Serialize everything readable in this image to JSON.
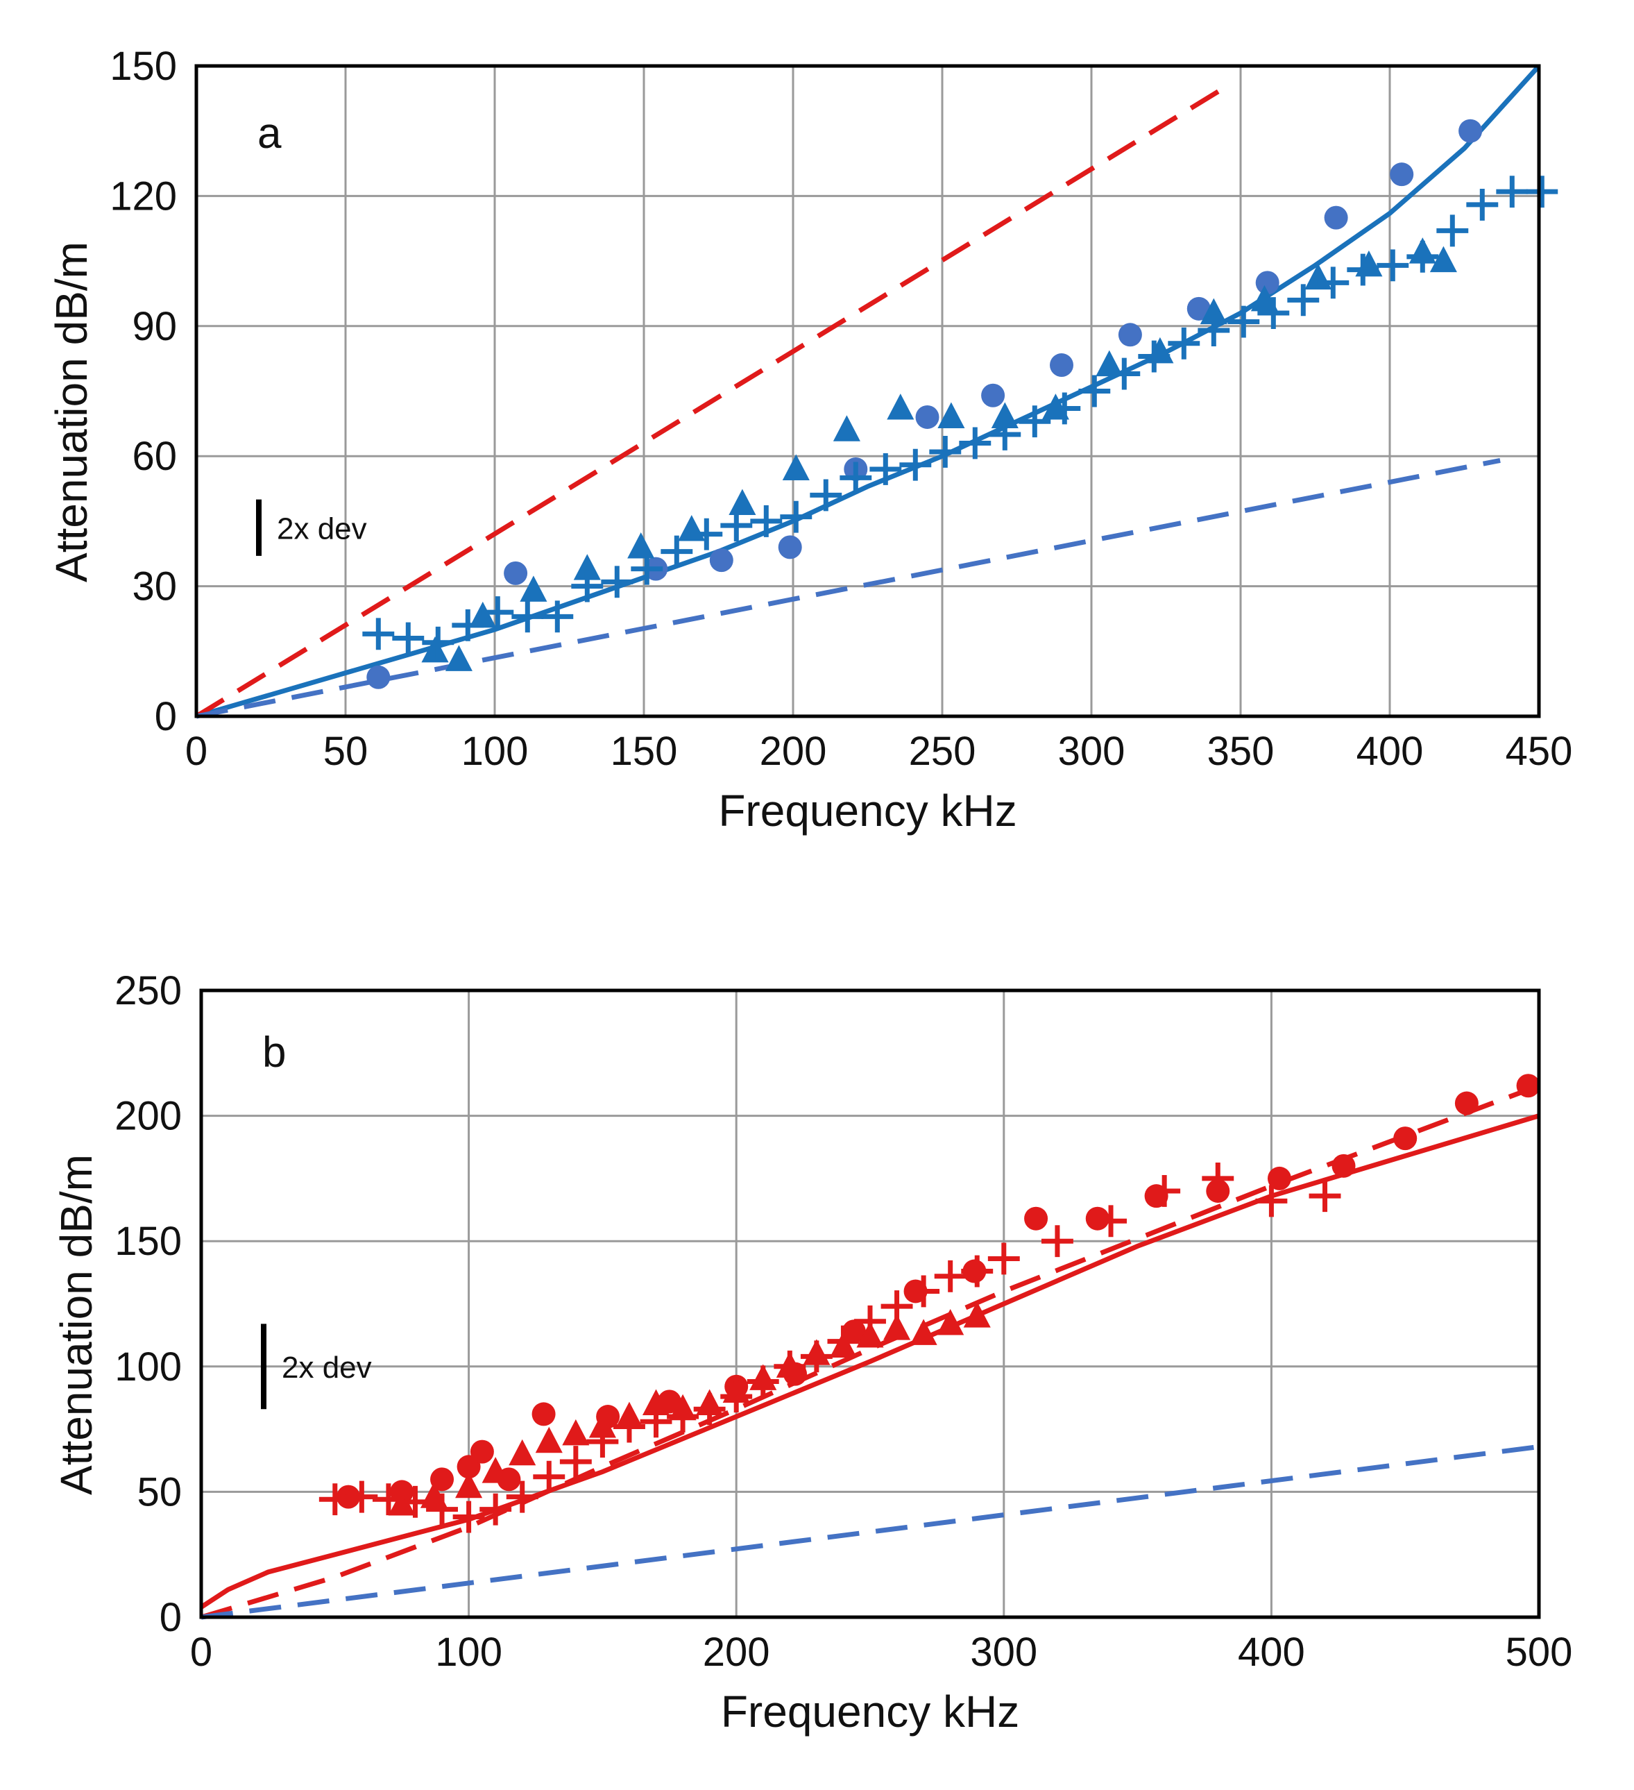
{
  "chart_data": [
    {
      "type": "scatter",
      "panel_label": "a",
      "xlabel": "Frequency  kHz",
      "ylabel": "Attenuation  dB/m",
      "xlim": [
        0,
        450
      ],
      "ylim": [
        0,
        150
      ],
      "xticks": [
        0,
        50,
        100,
        150,
        200,
        250,
        300,
        350,
        400,
        450
      ],
      "yticks": [
        0,
        30,
        60,
        90,
        120,
        150
      ],
      "grid": true,
      "scale_bar": {
        "label": "2x dev",
        "y_from": 37,
        "y_to": 50
      },
      "series": [
        {
          "marker": "circle",
          "color": "#4472c4",
          "x": [
            61,
            107,
            154,
            176,
            199,
            221,
            245,
            267,
            290,
            313,
            336,
            359,
            382,
            404,
            427
          ],
          "y": [
            9,
            33,
            34,
            36,
            39,
            57,
            69,
            74,
            81,
            88,
            94,
            100,
            115,
            125,
            135
          ]
        },
        {
          "marker": "triangle",
          "color": "#1a72bb",
          "x": [
            80,
            88,
            96,
            113,
            131,
            149,
            166,
            183,
            201,
            218,
            236,
            253,
            271,
            288,
            306,
            323,
            341,
            358,
            376,
            393,
            411,
            418
          ],
          "y": [
            15,
            13,
            23,
            29,
            34,
            39,
            43,
            49,
            57,
            66,
            71,
            69,
            69,
            71,
            81,
            84,
            93,
            96,
            101,
            104,
            107,
            105
          ]
        },
        {
          "marker": "plus",
          "color": "#1a72bb",
          "x": [
            61,
            71,
            81,
            91,
            101,
            111,
            121,
            131,
            141,
            151,
            161,
            171,
            181,
            191,
            201,
            211,
            221,
            231,
            241,
            251,
            261,
            271,
            281,
            291,
            301,
            311,
            321,
            331,
            341,
            351,
            361,
            371,
            381,
            391,
            401,
            411,
            421,
            431,
            441,
            451
          ],
          "y": [
            19,
            18,
            17,
            21,
            24,
            23,
            23,
            30,
            31,
            34,
            38,
            42,
            44,
            45,
            46,
            51,
            55,
            57,
            58,
            61,
            63,
            65,
            68,
            71,
            75,
            79,
            83,
            86,
            89,
            91,
            93,
            96,
            100,
            103,
            104,
            106,
            112,
            118,
            121,
            121
          ]
        },
        {
          "style": "solid",
          "color": "#1a72bb",
          "x": [
            0,
            25,
            50,
            75,
            100,
            125,
            150,
            175,
            200,
            225,
            250,
            275,
            300,
            325,
            350,
            375,
            400,
            425,
            450
          ],
          "y": [
            0,
            5,
            10,
            15,
            20,
            26,
            32,
            38,
            45,
            53,
            60,
            68,
            76,
            84,
            93,
            104,
            116,
            131,
            150
          ]
        },
        {
          "style": "dashed",
          "color": "#e01a1a",
          "x": [
            0,
            347
          ],
          "y": [
            0,
            146
          ]
        },
        {
          "style": "dashed",
          "color": "#4472c4",
          "x": [
            0,
            437
          ],
          "y": [
            0,
            59
          ]
        }
      ]
    },
    {
      "type": "scatter",
      "panel_label": "b",
      "xlabel": "Frequency  kHz",
      "ylabel": "Attenuation  dB/m",
      "xlim": [
        0,
        500
      ],
      "ylim": [
        0,
        250
      ],
      "xticks": [
        0,
        100,
        200,
        300,
        400,
        500
      ],
      "yticks": [
        0,
        50,
        100,
        150,
        200,
        250
      ],
      "grid": true,
      "scale_bar": {
        "label": "2x dev",
        "y_from": 83,
        "y_to": 117
      },
      "series": [
        {
          "marker": "circle",
          "color": "#e01a1a",
          "x": [
            55,
            75,
            90,
            100,
            105,
            115,
            128,
            152,
            175,
            200,
            222,
            244,
            267,
            289,
            312,
            335,
            357,
            380,
            403,
            427,
            450,
            473,
            496
          ],
          "y": [
            48,
            50,
            55,
            60,
            66,
            55,
            81,
            80,
            86,
            92,
            97,
            114,
            130,
            138,
            159,
            159,
            168,
            170,
            175,
            180,
            191,
            205,
            212
          ]
        },
        {
          "marker": "triangle",
          "color": "#e01a1a",
          "x": [
            75,
            87,
            100,
            110,
            120,
            130,
            140,
            150,
            160,
            170,
            180,
            190,
            200,
            210,
            220,
            230,
            240,
            250,
            260,
            270,
            280,
            290
          ],
          "y": [
            45,
            48,
            52,
            58,
            65,
            70,
            73,
            76,
            80,
            85,
            83,
            85,
            90,
            95,
            100,
            105,
            108,
            112,
            115,
            113,
            117,
            120
          ]
        },
        {
          "marker": "plus",
          "color": "#e01a1a",
          "x": [
            50,
            60,
            70,
            80,
            90,
            100,
            110,
            120,
            130,
            140,
            150,
            160,
            170,
            180,
            190,
            200,
            210,
            220,
            230,
            240,
            250,
            260,
            270,
            280,
            290,
            300,
            320,
            340,
            360,
            380,
            400,
            420
          ],
          "y": [
            47,
            48,
            47,
            46,
            43,
            40,
            43,
            48,
            56,
            62,
            70,
            76,
            78,
            80,
            83,
            88,
            94,
            100,
            104,
            110,
            118,
            124,
            130,
            136,
            138,
            143,
            150,
            158,
            170,
            175,
            166,
            168
          ]
        },
        {
          "style": "solid",
          "color": "#e01a1a",
          "x": [
            0,
            10,
            25,
            50,
            75,
            100,
            150,
            200,
            250,
            300,
            350,
            400,
            450,
            500
          ],
          "y": [
            4,
            11,
            18,
            25,
            32,
            39,
            58,
            80,
            102,
            125,
            148,
            168,
            184,
            200
          ]
        },
        {
          "style": "dashed",
          "color": "#e01a1a",
          "x": [
            0,
            50,
            100,
            150,
            200,
            250,
            300,
            350,
            400,
            450,
            500
          ],
          "y": [
            0,
            16,
            36,
            60,
            83,
            107,
            130,
            151,
            172,
            192,
            212
          ]
        },
        {
          "style": "dashed",
          "color": "#4472c4",
          "x": [
            0,
            500
          ],
          "y": [
            0,
            68
          ]
        }
      ]
    }
  ]
}
